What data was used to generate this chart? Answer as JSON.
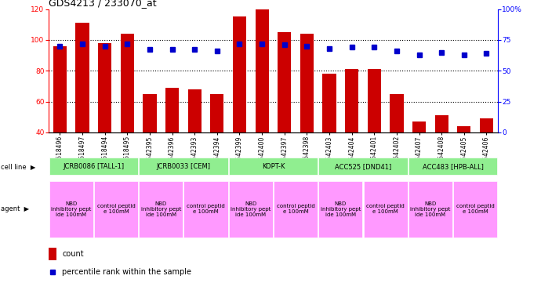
{
  "title": "GDS4213 / 233070_at",
  "samples": [
    "GSM518496",
    "GSM518497",
    "GSM518494",
    "GSM518495",
    "GSM542395",
    "GSM542396",
    "GSM542393",
    "GSM542394",
    "GSM542399",
    "GSM542400",
    "GSM542397",
    "GSM542398",
    "GSM542403",
    "GSM542404",
    "GSM542401",
    "GSM542402",
    "GSM542407",
    "GSM542408",
    "GSM542405",
    "GSM542406"
  ],
  "counts": [
    96,
    111,
    98,
    104,
    65,
    69,
    68,
    65,
    115,
    120,
    105,
    104,
    78,
    81,
    81,
    65,
    47,
    51,
    44,
    49
  ],
  "percentiles": [
    70,
    72,
    70,
    72,
    67,
    67,
    67,
    66,
    72,
    72,
    71,
    70,
    68,
    69,
    69,
    66,
    63,
    65,
    63,
    64
  ],
  "cell_lines": [
    {
      "name": "JCRB0086 [TALL-1]",
      "start": 0,
      "end": 4,
      "color": "#90EE90"
    },
    {
      "name": "JCRB0033 [CEM]",
      "start": 4,
      "end": 8,
      "color": "#90EE90"
    },
    {
      "name": "KOPT-K",
      "start": 8,
      "end": 12,
      "color": "#90EE90"
    },
    {
      "name": "ACC525 [DND41]",
      "start": 12,
      "end": 16,
      "color": "#90EE90"
    },
    {
      "name": "ACC483 [HPB-ALL]",
      "start": 16,
      "end": 20,
      "color": "#90EE90"
    }
  ],
  "agents": [
    {
      "name": "NBD\ninhibitory pept\nide 100mM",
      "start": 0,
      "end": 2,
      "color": "#FF99FF"
    },
    {
      "name": "control peptid\ne 100mM",
      "start": 2,
      "end": 4,
      "color": "#FF99FF"
    },
    {
      "name": "NBD\ninhibitory pept\nide 100mM",
      "start": 4,
      "end": 6,
      "color": "#FF99FF"
    },
    {
      "name": "control peptid\ne 100mM",
      "start": 6,
      "end": 8,
      "color": "#FF99FF"
    },
    {
      "name": "NBD\ninhibitory pept\nide 100mM",
      "start": 8,
      "end": 10,
      "color": "#FF99FF"
    },
    {
      "name": "control peptid\ne 100mM",
      "start": 10,
      "end": 12,
      "color": "#FF99FF"
    },
    {
      "name": "NBD\ninhibitory pept\nide 100mM",
      "start": 12,
      "end": 14,
      "color": "#FF99FF"
    },
    {
      "name": "control peptid\ne 100mM",
      "start": 14,
      "end": 16,
      "color": "#FF99FF"
    },
    {
      "name": "NBD\ninhibitory pept\nide 100mM",
      "start": 16,
      "end": 18,
      "color": "#FF99FF"
    },
    {
      "name": "control peptid\ne 100mM",
      "start": 18,
      "end": 20,
      "color": "#FF99FF"
    }
  ],
  "bar_color": "#CC0000",
  "percentile_color": "#0000CC",
  "ylim_left": [
    40,
    120
  ],
  "ylim_right": [
    0,
    100
  ],
  "yticks_left": [
    40,
    60,
    80,
    100,
    120
  ],
  "yticks_right": [
    0,
    25,
    50,
    75,
    100
  ],
  "ytick_labels_right": [
    "0",
    "25",
    "50",
    "75",
    "100%"
  ],
  "background_color": "#FFFFFF",
  "grid_dotted_at": [
    60,
    80,
    100
  ],
  "title_fontsize": 9,
  "label_fontsize": 5.5,
  "tick_fontsize": 6.5,
  "cell_line_label": "cell line",
  "agent_label": "agent"
}
